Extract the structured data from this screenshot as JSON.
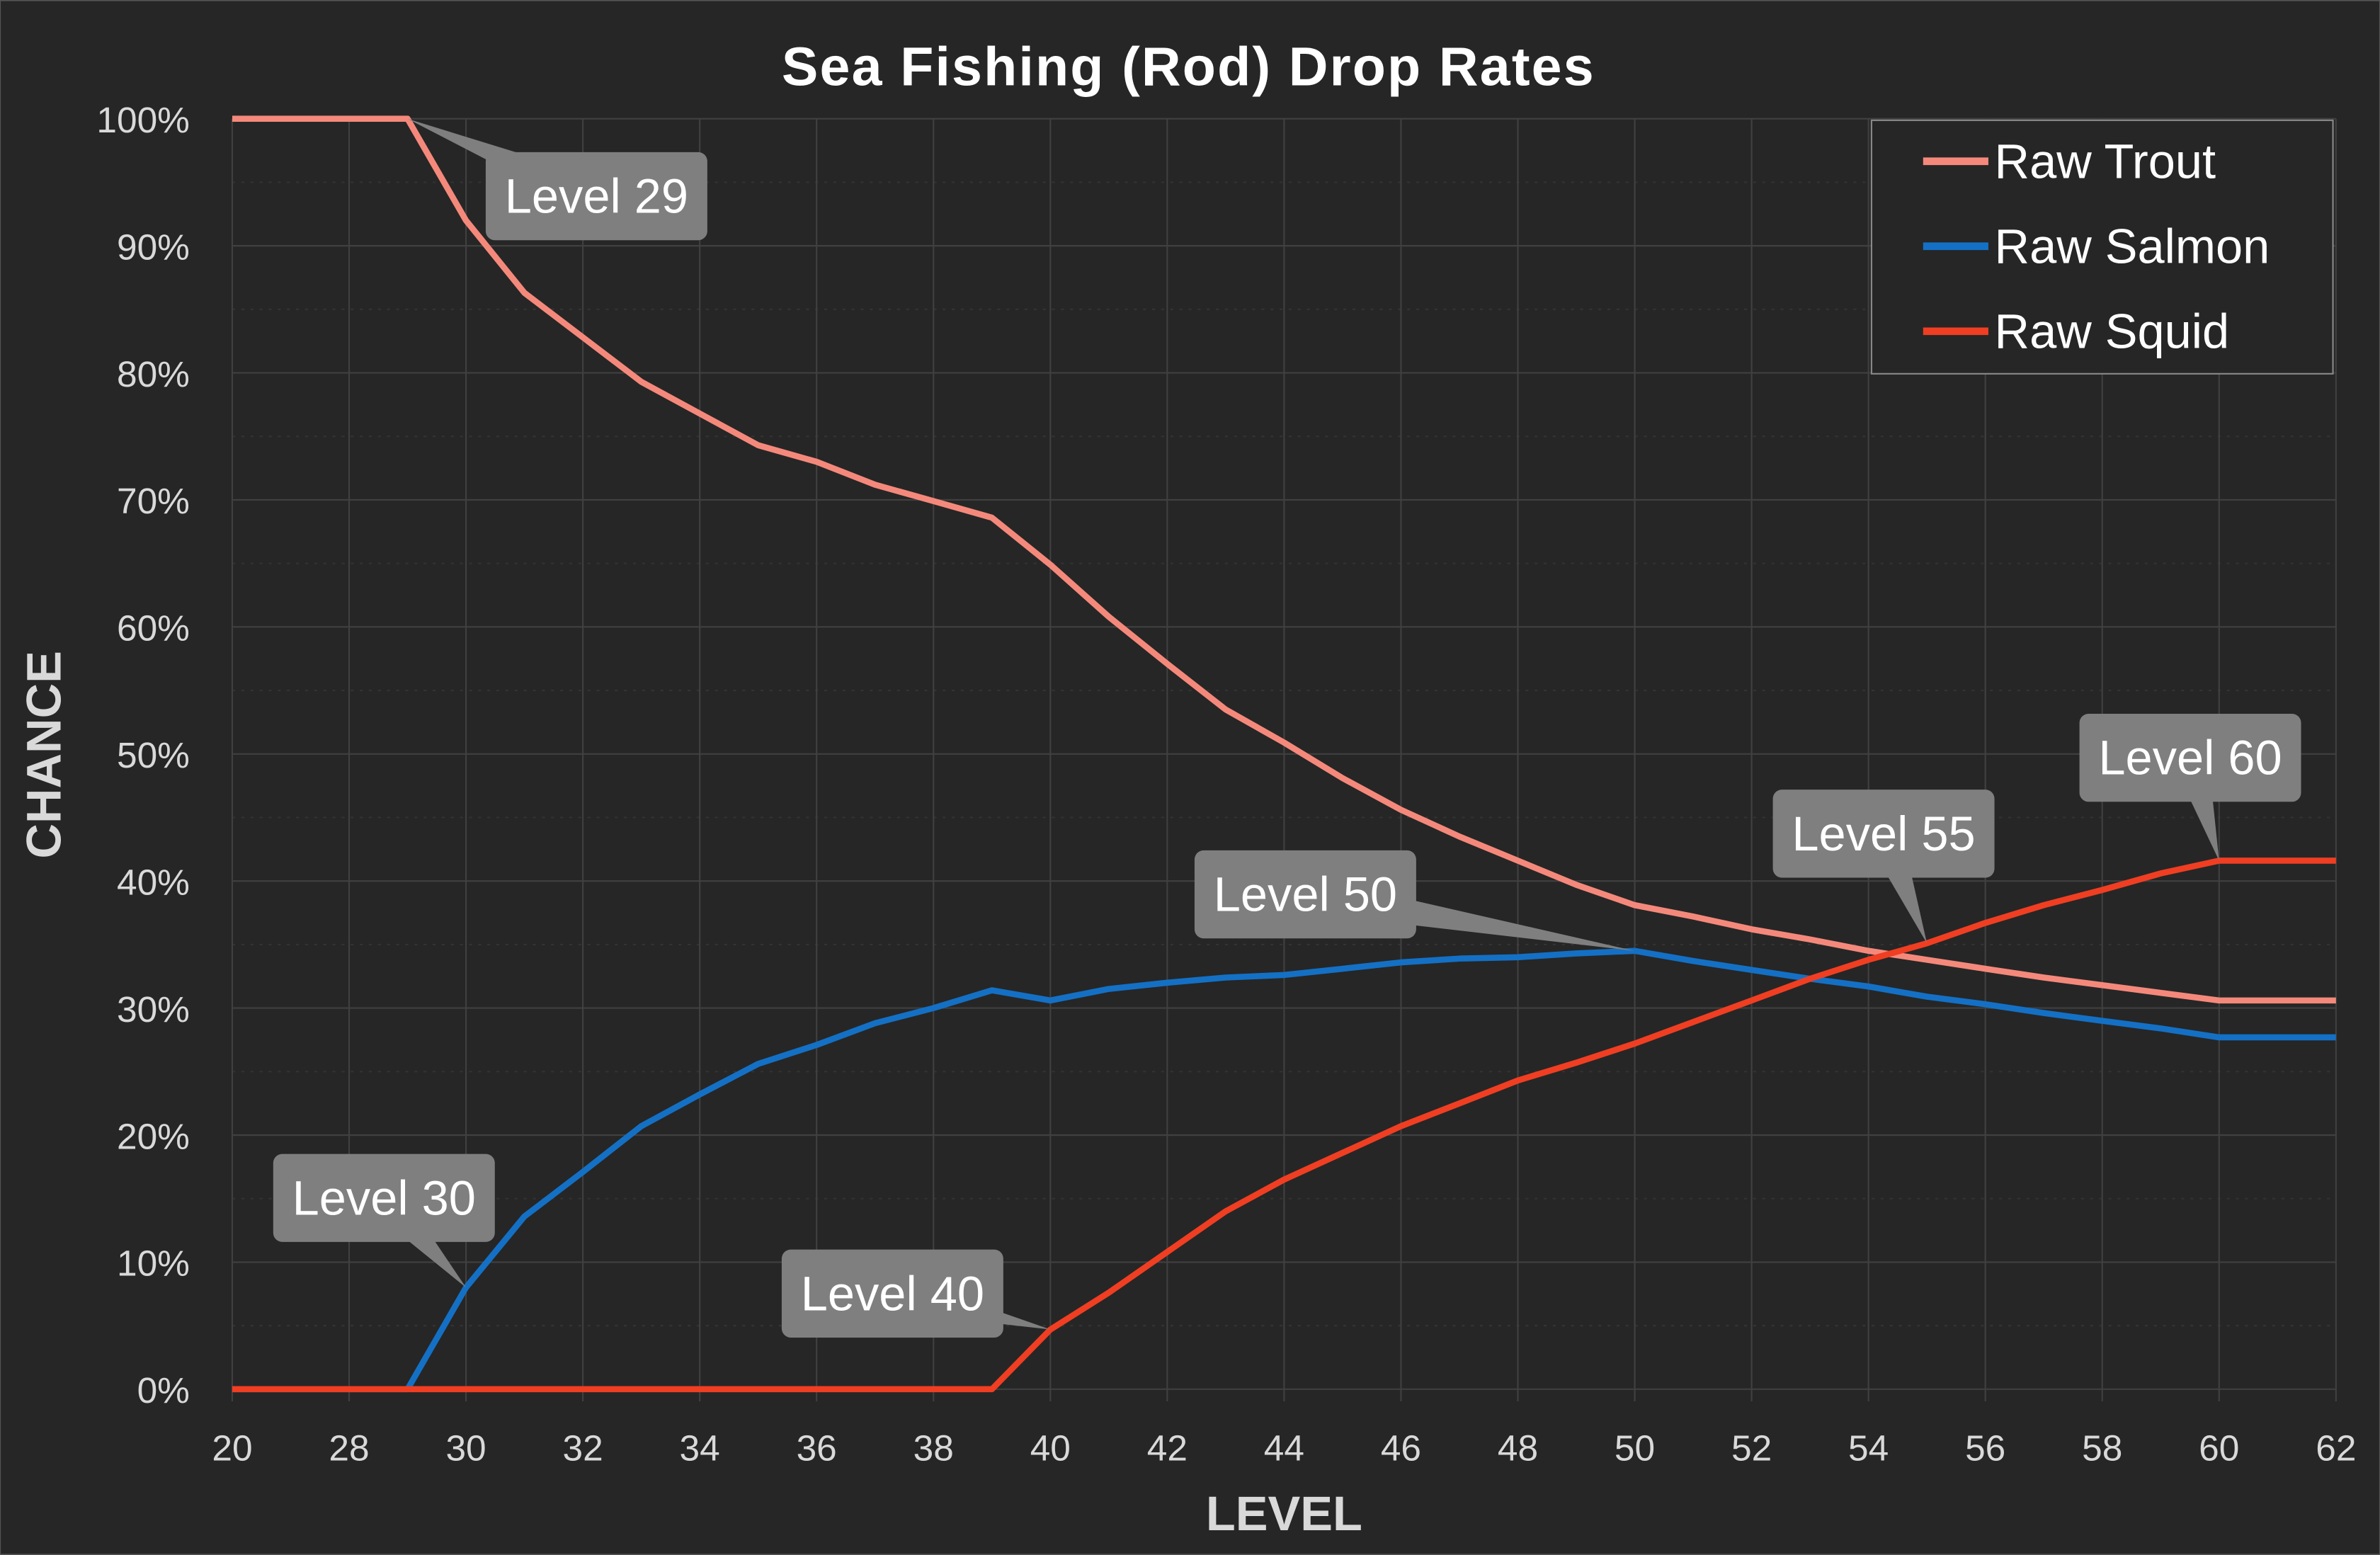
{
  "chart_data": {
    "type": "line",
    "title": "Sea Fishing (Rod)  Drop Rates",
    "xlabel": "LEVEL",
    "ylabel": "CHANCE",
    "x": [
      20,
      27,
      28,
      29,
      30,
      31,
      32,
      33,
      34,
      35,
      36,
      37,
      38,
      39,
      40,
      41,
      42,
      43,
      44,
      45,
      46,
      47,
      48,
      49,
      50,
      51,
      52,
      53,
      54,
      55,
      56,
      57,
      58,
      59,
      60,
      61,
      62
    ],
    "x_tick_labels": [
      "20",
      "28",
      "30",
      "32",
      "34",
      "36",
      "38",
      "40",
      "42",
      "44",
      "46",
      "48",
      "50",
      "52",
      "54",
      "56",
      "58",
      "60",
      "62"
    ],
    "y_tick_labels": [
      "0%",
      "10%",
      "20%",
      "30%",
      "40%",
      "50%",
      "60%",
      "70%",
      "80%",
      "90%",
      "100%"
    ],
    "ylim": [
      0,
      100
    ],
    "grid": true,
    "legend_position": "top-right",
    "series": [
      {
        "name": "Raw Trout",
        "color": "#F4897B",
        "values": [
          100,
          100,
          100,
          100,
          92.0,
          86.3,
          82.8,
          79.3,
          76.8,
          74.3,
          73.0,
          71.2,
          69.9,
          68.6,
          64.9,
          60.8,
          57.1,
          53.5,
          50.9,
          48.1,
          45.6,
          43.5,
          41.6,
          39.7,
          38.1,
          37.2,
          36.2,
          35.4,
          34.5,
          33.8,
          33.1,
          32.4,
          31.8,
          31.2,
          30.6,
          30.6,
          30.6
        ]
      },
      {
        "name": "Raw Salmon",
        "color": "#1470C4",
        "values": [
          0,
          0,
          0,
          0,
          8.0,
          13.6,
          17.1,
          20.7,
          23.2,
          25.6,
          27.1,
          28.8,
          30.0,
          31.4,
          30.6,
          31.5,
          32.0,
          32.4,
          32.6,
          33.1,
          33.6,
          33.9,
          34.0,
          34.3,
          34.5,
          33.7,
          33.0,
          32.3,
          31.7,
          30.9,
          30.3,
          29.6,
          29.0,
          28.4,
          27.7,
          27.7,
          27.7
        ]
      },
      {
        "name": "Raw Squid",
        "color": "#F03E22",
        "values": [
          0,
          0,
          0,
          0,
          0,
          0,
          0,
          0,
          0,
          0,
          0,
          0,
          0,
          0,
          4.7,
          7.6,
          10.8,
          14.0,
          16.5,
          18.6,
          20.7,
          22.5,
          24.3,
          25.7,
          27.2,
          28.9,
          30.6,
          32.3,
          33.8,
          35.1,
          36.7,
          38.1,
          39.3,
          40.6,
          41.6,
          41.6,
          41.6
        ]
      }
    ],
    "annotations": [
      {
        "text": "Level 29",
        "series": "Raw Trout",
        "x": 29
      },
      {
        "text": "Level 30",
        "series": "Raw Salmon",
        "x": 30
      },
      {
        "text": "Level 40",
        "series": "Raw Squid",
        "x": 40
      },
      {
        "text": "Level 50",
        "series": "Raw Salmon",
        "x": 50
      },
      {
        "text": "Level 55",
        "series": "Raw Squid",
        "x": 55
      },
      {
        "text": "Level 60",
        "series": "Raw Squid",
        "x": 60
      }
    ]
  }
}
